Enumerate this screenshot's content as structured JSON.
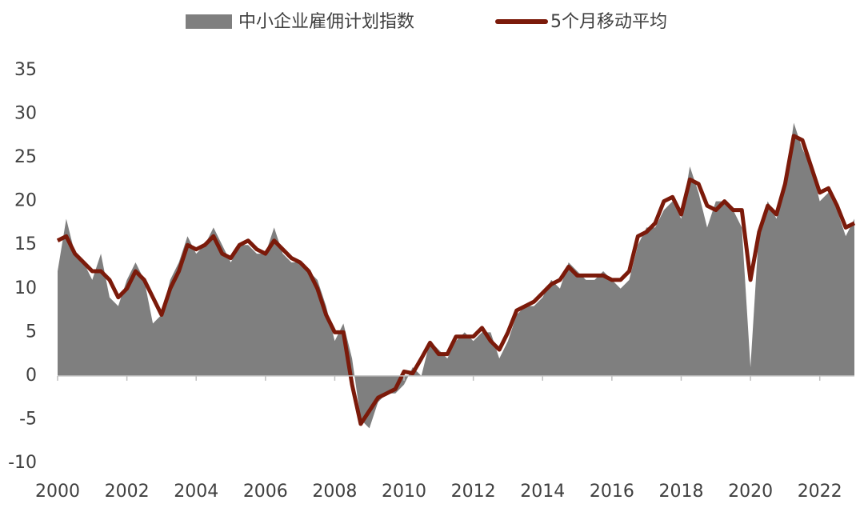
{
  "chart_data": {
    "type": "line",
    "x": [
      2000,
      2000.25,
      2000.5,
      2000.75,
      2001,
      2001.25,
      2001.5,
      2001.75,
      2002,
      2002.25,
      2002.5,
      2002.75,
      2003,
      2003.25,
      2003.5,
      2003.75,
      2004,
      2004.25,
      2004.5,
      2004.75,
      2005,
      2005.25,
      2005.5,
      2005.75,
      2006,
      2006.25,
      2006.5,
      2006.75,
      2007,
      2007.25,
      2007.5,
      2007.75,
      2008,
      2008.25,
      2008.5,
      2008.75,
      2009,
      2009.25,
      2009.5,
      2009.75,
      2010,
      2010.25,
      2010.5,
      2010.75,
      2011,
      2011.25,
      2011.5,
      2011.75,
      2012,
      2012.25,
      2012.5,
      2012.75,
      2013,
      2013.25,
      2013.5,
      2013.75,
      2014,
      2014.25,
      2014.5,
      2014.75,
      2015,
      2015.25,
      2015.5,
      2015.75,
      2016,
      2016.25,
      2016.5,
      2016.75,
      2017,
      2017.25,
      2017.5,
      2017.75,
      2018,
      2018.25,
      2018.5,
      2018.75,
      2019,
      2019.25,
      2019.5,
      2019.75,
      2020,
      2020.25,
      2020.5,
      2020.75,
      2021,
      2021.25,
      2021.5,
      2021.75,
      2022,
      2022.25,
      2022.5,
      2022.75,
      2023
    ],
    "series": [
      {
        "name": "中小企业雇佣计划指数",
        "type": "area",
        "color": "#7f7f7f",
        "values": [
          12,
          18,
          14,
          13,
          11,
          14,
          9,
          8,
          11,
          13,
          11,
          6,
          7,
          11,
          13,
          16,
          14,
          15,
          17,
          15,
          13,
          15,
          15,
          14,
          14,
          17,
          14,
          13,
          13,
          12,
          11,
          8,
          4,
          6,
          2,
          -5,
          -6,
          -3,
          -2,
          -2,
          -1,
          1,
          0,
          4,
          3,
          2,
          4,
          5,
          4,
          5,
          5,
          2,
          4,
          7,
          8,
          8,
          9,
          11,
          10,
          13,
          12,
          11,
          11,
          12,
          11,
          10,
          11,
          15,
          17,
          17,
          19,
          20,
          18,
          24,
          21,
          17,
          20,
          20,
          19,
          17,
          1,
          17,
          20,
          18,
          22,
          29,
          26,
          24,
          20,
          21,
          19,
          16,
          18
        ]
      },
      {
        "name": "5个月移动平均",
        "type": "line",
        "color": "#7b1a0a",
        "values": [
          15.5,
          16,
          14,
          13,
          12,
          12,
          11,
          9,
          10,
          12,
          11,
          9,
          7,
          10,
          12,
          15,
          14.5,
          15,
          16,
          14,
          13.5,
          15,
          15.5,
          14.5,
          14,
          15.5,
          14.5,
          13.5,
          13,
          12,
          10,
          7,
          5,
          5,
          -1,
          -5.5,
          -4,
          -2.5,
          -2,
          -1.5,
          0.5,
          0.3,
          2,
          3.8,
          2.5,
          2.5,
          4.5,
          4.5,
          4.5,
          5.5,
          4,
          3,
          5,
          7.5,
          8,
          8.5,
          9.5,
          10.5,
          11,
          12.5,
          11.5,
          11.5,
          11.5,
          11.5,
          11,
          11,
          12,
          16,
          16.5,
          17.5,
          20,
          20.5,
          18.5,
          22.5,
          22,
          19.5,
          19,
          20,
          19,
          19,
          11,
          16.5,
          19.5,
          18.5,
          22,
          27.5,
          27,
          24,
          21,
          21.5,
          19.5,
          17,
          17.5
        ]
      }
    ],
    "xlim": [
      2000,
      2023
    ],
    "xticks": [
      2000,
      2002,
      2004,
      2006,
      2008,
      2010,
      2012,
      2014,
      2016,
      2018,
      2020,
      2022
    ],
    "ylim": [
      -10,
      35
    ],
    "yticks": [
      -10,
      -5,
      0,
      5,
      10,
      15,
      20,
      25,
      30,
      35
    ],
    "grid": false,
    "legend": "top"
  }
}
